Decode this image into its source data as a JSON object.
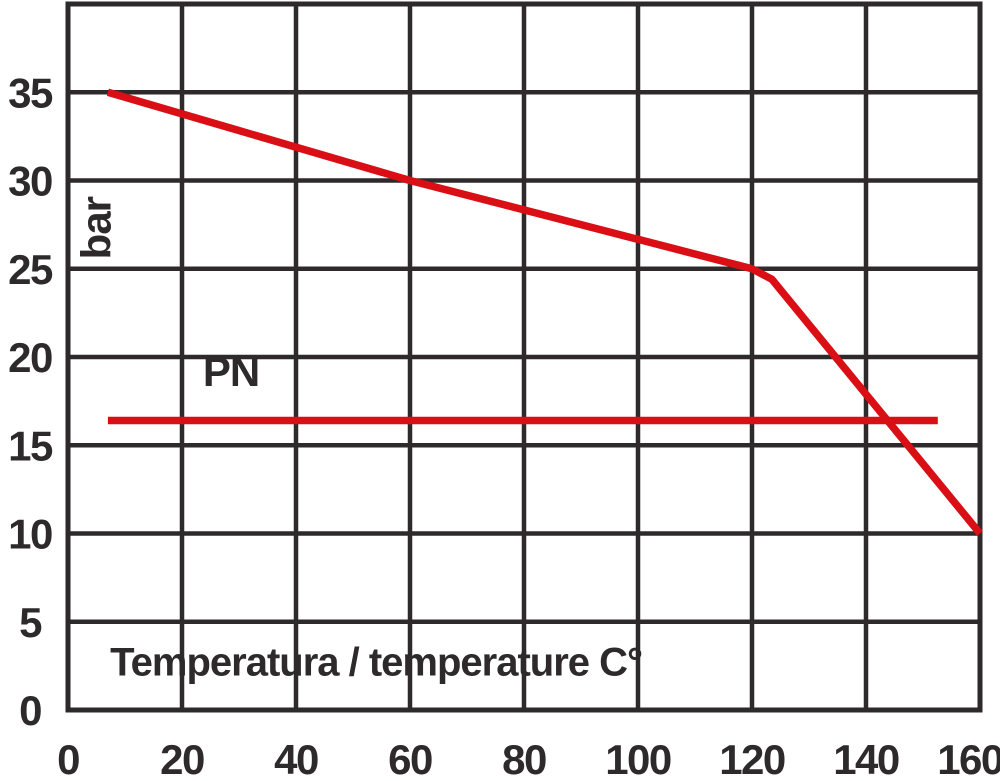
{
  "colors": {
    "ink": "#2e292a",
    "curve_red": "#da0e15",
    "background": "#ffffff"
  },
  "chart_data": {
    "type": "line",
    "title": "",
    "xlabel": "Temperatura / temperature C°",
    "ylabel": "bar",
    "xlim": [
      0,
      160
    ],
    "ylim": [
      0,
      40
    ],
    "grid": true,
    "legend_position": "none",
    "x_grid": [
      0,
      20,
      40,
      60,
      80,
      100,
      120,
      140,
      160
    ],
    "y_grid": [
      0,
      5,
      10,
      15,
      20,
      25,
      30,
      35,
      40
    ],
    "x_ticks": [
      {
        "v": 0,
        "label": "0"
      },
      {
        "v": 20,
        "label": "20"
      },
      {
        "v": 40,
        "label": "40"
      },
      {
        "v": 60,
        "label": "60"
      },
      {
        "v": 80,
        "label": "80"
      },
      {
        "v": 100,
        "label": "100"
      },
      {
        "v": 120,
        "label": "120"
      },
      {
        "v": 140,
        "label": "140"
      },
      {
        "v": 160,
        "label": "160"
      }
    ],
    "y_ticks": [
      {
        "v": 0,
        "label": "0"
      },
      {
        "v": 5,
        "label": "5"
      },
      {
        "v": 10,
        "label": "10"
      },
      {
        "v": 15,
        "label": "15"
      },
      {
        "v": 20,
        "label": "20"
      },
      {
        "v": 25,
        "label": "25"
      },
      {
        "v": 30,
        "label": "30"
      },
      {
        "v": 35,
        "label": "35"
      }
    ],
    "series": [
      {
        "name": "max-pressure-curve",
        "label": "",
        "color": "#da0e15",
        "points": [
          [
            7,
            35
          ],
          [
            60,
            30
          ],
          [
            120,
            25
          ],
          [
            123.5,
            24.4
          ],
          [
            160,
            10
          ]
        ]
      },
      {
        "name": "pn-rating-line",
        "label": "PN",
        "color": "#da0e15",
        "points": [
          [
            7,
            16.4
          ],
          [
            152.6,
            16.4
          ]
        ]
      }
    ],
    "annotations": [
      {
        "name": "y-axis-unit-label",
        "text": "bar",
        "x": 7.5,
        "y": 27.3,
        "rotate": -90,
        "anchor": "middle",
        "size": 42
      },
      {
        "name": "pn-line-label",
        "text": "PN",
        "x": 28.6,
        "y": 18.35,
        "rotate": 0,
        "anchor": "middle",
        "size": 42
      },
      {
        "name": "x-axis-title",
        "text": "Temperatura / temperature C°",
        "x": 7.4,
        "y": 1.95,
        "rotate": 0,
        "anchor": "start",
        "size": 40
      }
    ]
  }
}
